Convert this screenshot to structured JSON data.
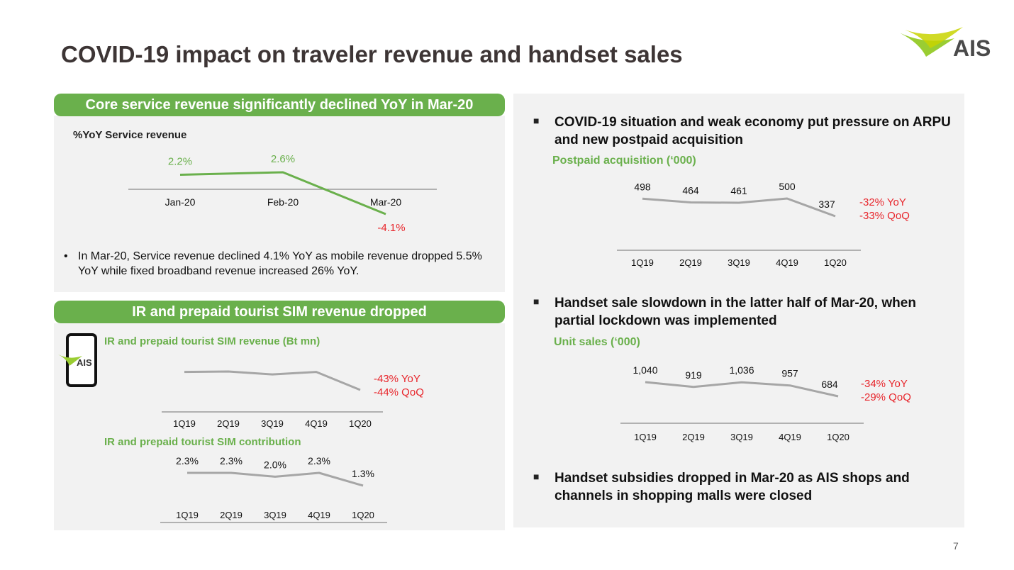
{
  "title": "COVID-19 impact on traveler revenue and handset sales",
  "logo_text": "AIS",
  "page_number": "7",
  "colors": {
    "accent": "#6ab04c",
    "negative": "#e8262c",
    "line_gray": "#a6a6a6",
    "panel": "#f2f2f2"
  },
  "left_top": {
    "header": "Core service revenue significantly declined YoY in Mar-20",
    "chart_label": "%YoY Service revenue",
    "bullet": "In Mar-20, Service revenue declined 4.1% YoY as mobile revenue dropped 5.5% YoY while fixed broadband revenue increased 26% YoY."
  },
  "left_bottom": {
    "header": "IR and prepaid tourist SIM revenue dropped",
    "icon": "phone-icon",
    "chart1_label": "IR and prepaid tourist SIM revenue (Bt mn)",
    "chart1_yoy": "-43% YoY",
    "chart1_qoq": "-44% QoQ",
    "chart2_label": "IR and prepaid tourist SIM contribution"
  },
  "right": {
    "bullet1": "COVID-19 situation and weak economy put pressure on ARPU and new postpaid acquisition",
    "chart1_label": "Postpaid acquisition (‘000)",
    "chart1_yoy": "-32% YoY",
    "chart1_qoq": "-33% QoQ",
    "bullet2": "Handset sale slowdown in the latter half of Mar-20, when partial lockdown was implemented",
    "chart2_label": "Unit sales (‘000)",
    "chart2_yoy": "-34% YoY",
    "chart2_qoq": "-29% QoQ",
    "bullet3": "Handset subsidies dropped in Mar-20 as AIS shops and channels in shopping malls were closed"
  },
  "chart_data": [
    {
      "type": "line",
      "title": "%YoY Service revenue",
      "categories": [
        "Jan-20",
        "Feb-20",
        "Mar-20"
      ],
      "values": [
        2.2,
        2.6,
        -4.1
      ],
      "data_labels": [
        "2.2%",
        "2.6%",
        "-4.1%"
      ]
    },
    {
      "type": "line",
      "title": "IR and prepaid tourist SIM revenue (Bt mn)",
      "categories": [
        "1Q19",
        "2Q19",
        "3Q19",
        "4Q19",
        "1Q20"
      ],
      "values": [
        100,
        101,
        94,
        100,
        57
      ],
      "annotations": [
        "-43% YoY",
        "-44% QoQ"
      ]
    },
    {
      "type": "line",
      "title": "IR and prepaid tourist SIM contribution",
      "categories": [
        "1Q19",
        "2Q19",
        "3Q19",
        "4Q19",
        "1Q20"
      ],
      "values": [
        2.3,
        2.3,
        2.0,
        2.3,
        1.3
      ],
      "data_labels": [
        "2.3%",
        "2.3%",
        "2.0%",
        "2.3%",
        "1.3%"
      ]
    },
    {
      "type": "line",
      "title": "Postpaid acquisition (‘000)",
      "categories": [
        "1Q19",
        "2Q19",
        "3Q19",
        "4Q19",
        "1Q20"
      ],
      "values": [
        498,
        464,
        461,
        500,
        337
      ],
      "data_labels": [
        "498",
        "464",
        "461",
        "500",
        "337"
      ],
      "annotations": [
        "-32% YoY",
        "-33% QoQ"
      ]
    },
    {
      "type": "line",
      "title": "Unit sales (‘000)",
      "categories": [
        "1Q19",
        "2Q19",
        "3Q19",
        "4Q19",
        "1Q20"
      ],
      "values": [
        1040,
        919,
        1036,
        957,
        684
      ],
      "data_labels": [
        "1,040",
        "919",
        "1,036",
        "957",
        "684"
      ],
      "annotations": [
        "-34% YoY",
        "-29% QoQ"
      ]
    }
  ]
}
